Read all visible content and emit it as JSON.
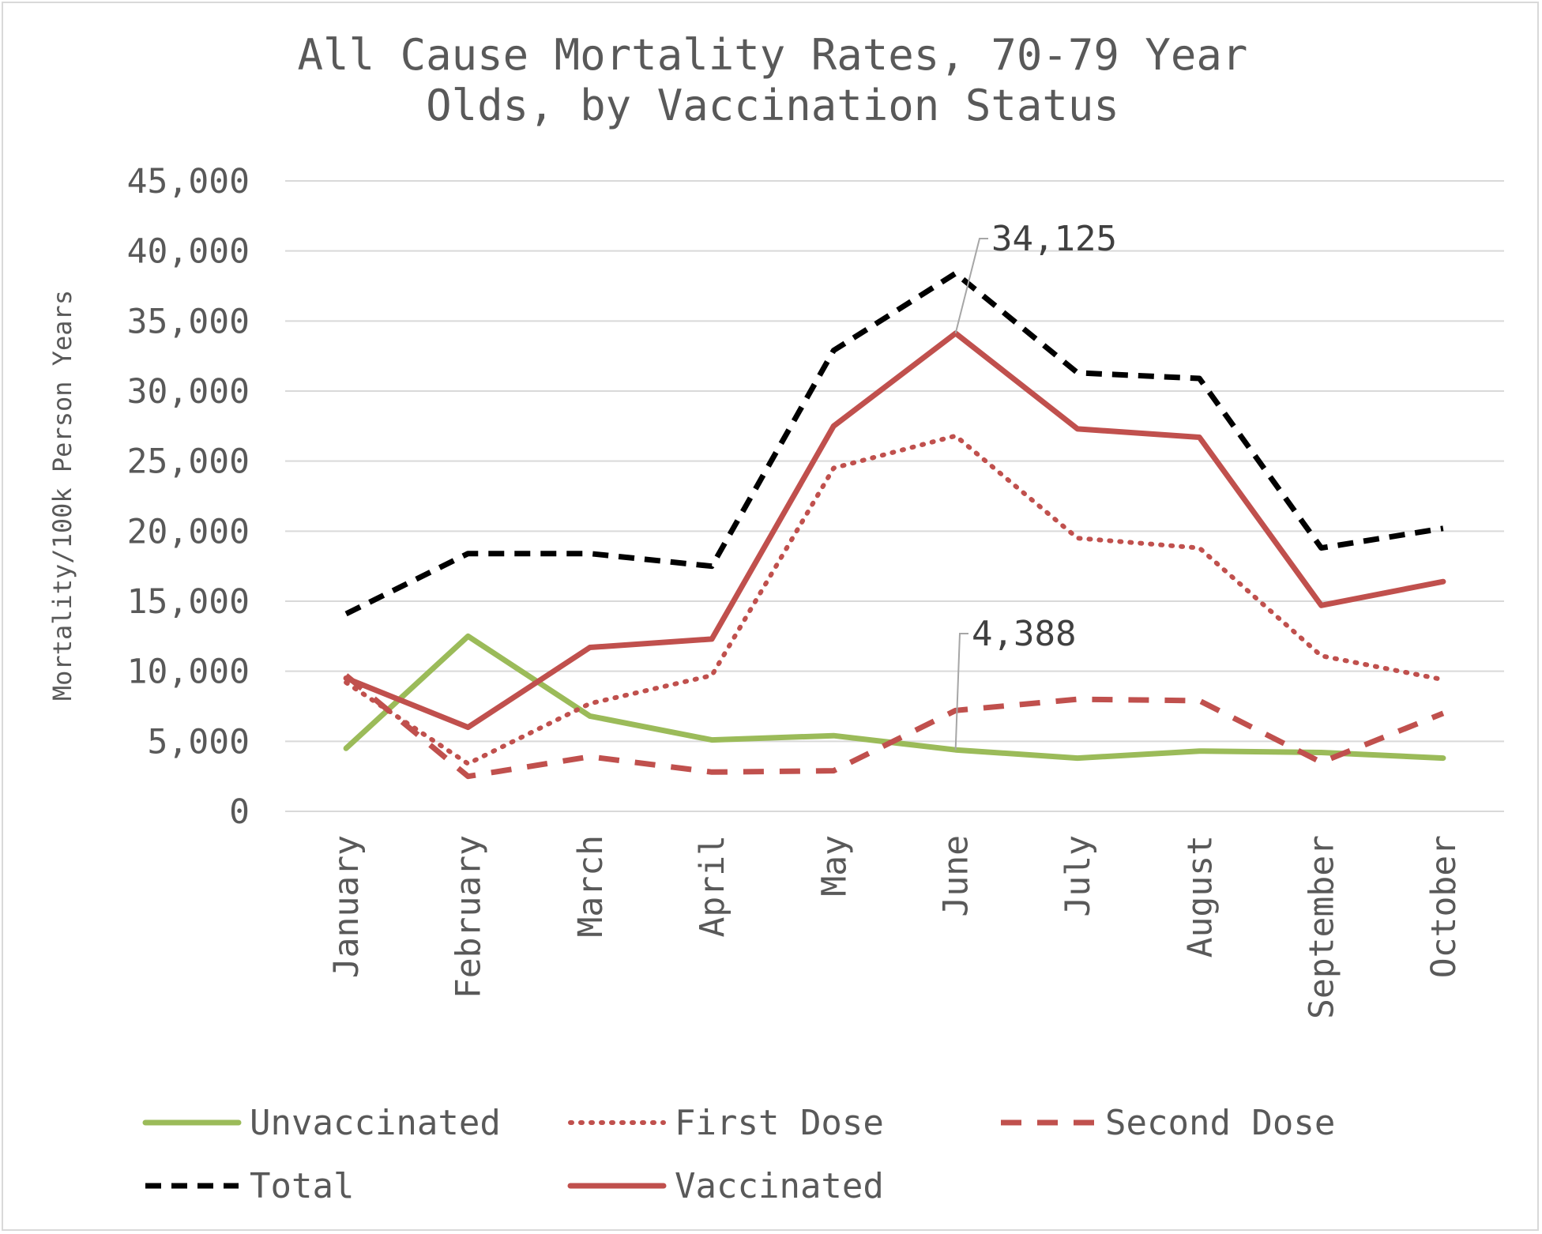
{
  "chart_data": {
    "type": "line",
    "title_line1": "All Cause Mortality Rates, 70-79 Year",
    "title_line2": "Olds, by Vaccination Status",
    "ylabel": "Mortality/100k Person Years",
    "xlabel": "",
    "ylim": [
      0,
      45000
    ],
    "yticks": [
      0,
      5000,
      10000,
      15000,
      20000,
      25000,
      30000,
      35000,
      40000,
      45000
    ],
    "ytick_labels": [
      "0",
      "5,000",
      "10,000",
      "15,000",
      "20,000",
      "25,000",
      "30,000",
      "35,000",
      "40,000",
      "45,000"
    ],
    "grid": true,
    "legend_position": "bottom",
    "categories": [
      "January",
      "February",
      "March",
      "April",
      "May",
      "June",
      "July",
      "August",
      "September",
      "October"
    ],
    "series": [
      {
        "name": "Unvaccinated",
        "color": "#9BBB59",
        "style": "solid",
        "values": [
          4500,
          12500,
          6800,
          5100,
          5400,
          4388,
          3800,
          4300,
          4200,
          3800
        ]
      },
      {
        "name": "First Dose",
        "color": "#C0504D",
        "style": "dotted",
        "values": [
          9200,
          3400,
          7700,
          9700,
          24500,
          26800,
          19500,
          18800,
          11100,
          9400
        ]
      },
      {
        "name": "Second Dose",
        "color": "#C0504D",
        "style": "dashed",
        "values": [
          9700,
          2500,
          3900,
          2800,
          2900,
          7200,
          8000,
          7900,
          3500,
          7000
        ]
      },
      {
        "name": "Total",
        "color": "#000000",
        "style": "dashed-black",
        "values": [
          14100,
          18400,
          18400,
          17500,
          32900,
          38400,
          31300,
          30900,
          18800,
          20200
        ]
      },
      {
        "name": "Vaccinated",
        "color": "#C0504D",
        "style": "solid",
        "values": [
          9500,
          6000,
          11700,
          12300,
          27500,
          34125,
          27300,
          26700,
          14700,
          16400
        ]
      }
    ],
    "annotations": [
      {
        "text": "34,125",
        "series": "Vaccinated",
        "category": "June",
        "value": 34125
      },
      {
        "text": "4,388",
        "series": "Unvaccinated",
        "category": "June",
        "value": 4388
      }
    ]
  }
}
